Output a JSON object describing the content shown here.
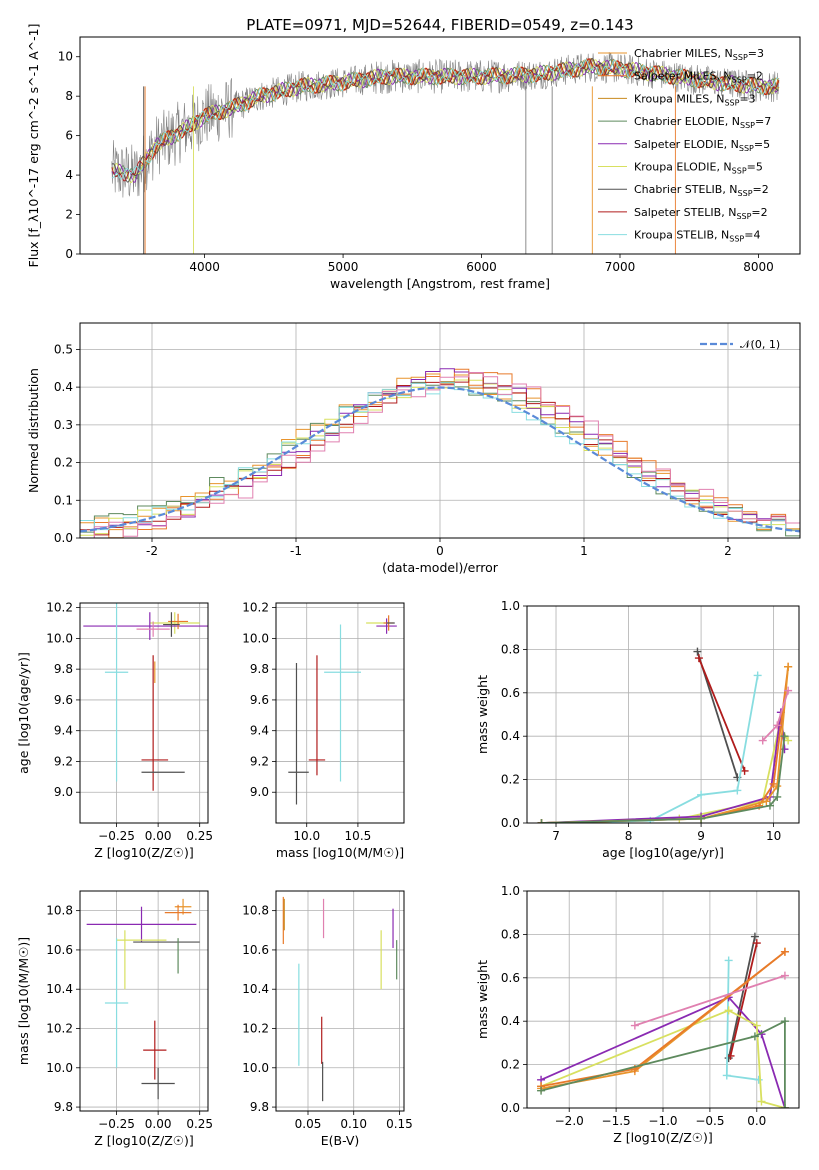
{
  "figure": {
    "title": "PLATE=0971, MJD=52644, FIBERID=0549, z=0.143"
  },
  "colors": {
    "Chabrier MILES": "#e8942c",
    "Salpeter MILES": "#e87a2a",
    "Kroupa MILES": "#c88a1e",
    "Chabrier ELODIE": "#5e8a5e",
    "Salpeter ELODIE": "#8a2ab2",
    "Kroupa ELODIE": "#d8e060",
    "Chabrier STELIB": "#505050",
    "Salpeter STELIB": "#b01c1c",
    "Kroupa STELIB": "#88dde0",
    "data": "#808080",
    "pink": "#e080b0",
    "gaussian": "#5a8ad8"
  },
  "chart_data": [
    {
      "id": "spectrum",
      "type": "line",
      "xlabel": "wavelength [Angstrom, rest frame]",
      "ylabel": "Flux [f_λ10^-17 erg cm^-2 s^-1 A^-1]",
      "xlim": [
        3100,
        8300
      ],
      "ylim": [
        0,
        11
      ],
      "xticks": [
        4000,
        5000,
        6000,
        7000,
        8000
      ],
      "yticks": [
        0,
        2,
        4,
        6,
        8,
        10
      ],
      "grid": false,
      "legend_position": "upper-right",
      "continuum_envelope": [
        [
          3330,
          4.2
        ],
        [
          3500,
          4.0
        ],
        [
          3650,
          5.5
        ],
        [
          3900,
          6.5
        ],
        [
          4000,
          7.0
        ],
        [
          4200,
          7.4
        ],
        [
          4400,
          8.0
        ],
        [
          4700,
          8.5
        ],
        [
          5000,
          8.7
        ],
        [
          5300,
          9.0
        ],
        [
          5600,
          9.0
        ],
        [
          6000,
          9.0
        ],
        [
          6400,
          9.1
        ],
        [
          6800,
          9.5
        ],
        [
          7000,
          9.4
        ],
        [
          7300,
          9.1
        ],
        [
          7700,
          8.7
        ],
        [
          8000,
          8.5
        ],
        [
          8150,
          8.5
        ]
      ],
      "series": [
        {
          "name": "Chabrier MILES",
          "ssp": "3",
          "color_key": "Chabrier MILES"
        },
        {
          "name": "Salpeter MILES",
          "ssp": "2",
          "color_key": "Salpeter MILES"
        },
        {
          "name": "Kroupa MILES",
          "ssp": "3",
          "color_key": "Kroupa MILES"
        },
        {
          "name": "Chabrier ELODIE",
          "ssp": "7",
          "color_key": "Chabrier ELODIE"
        },
        {
          "name": "Salpeter ELODIE",
          "ssp": "5",
          "color_key": "Salpeter ELODIE"
        },
        {
          "name": "Kroupa ELODIE",
          "ssp": "5",
          "color_key": "Kroupa ELODIE"
        },
        {
          "name": "Chabrier STELIB",
          "ssp": "2",
          "color_key": "Chabrier STELIB"
        },
        {
          "name": "Salpeter STELIB",
          "ssp": "2",
          "color_key": "Salpeter STELIB"
        },
        {
          "name": "Kroupa STELIB",
          "ssp": "4",
          "color_key": "Kroupa STELIB"
        }
      ]
    },
    {
      "id": "residuals",
      "type": "line",
      "xlabel": "(data-model)/error",
      "ylabel": "Normed distribution",
      "xlim": [
        -2.5,
        2.5
      ],
      "ylim": [
        0,
        0.57
      ],
      "xticks": [
        -2,
        -1,
        0,
        1,
        2
      ],
      "yticks": [
        0.0,
        0.1,
        0.2,
        0.3,
        0.4,
        0.5
      ],
      "grid": true,
      "legend_position": "upper-right",
      "gaussian_label": "𝒩(0, 1)",
      "bin_width": 0.1,
      "histograms": [
        {
          "color_key": "Chabrier MILES",
          "amp": 0.42,
          "sigma": 1.05,
          "shift": 0.05
        },
        {
          "color_key": "Salpeter MILES",
          "amp": 0.43,
          "sigma": 1.0,
          "shift": 0.15
        },
        {
          "color_key": "Chabrier ELODIE",
          "amp": 0.41,
          "sigma": 1.05,
          "shift": 0.0
        },
        {
          "color_key": "Salpeter ELODIE",
          "amp": 0.43,
          "sigma": 0.98,
          "shift": 0.1
        },
        {
          "color_key": "Kroupa ELODIE",
          "amp": 0.41,
          "sigma": 1.02,
          "shift": 0.05
        },
        {
          "color_key": "Salpeter STELIB",
          "amp": 0.42,
          "sigma": 1.0,
          "shift": 0.12
        },
        {
          "color_key": "Kroupa STELIB",
          "amp": 0.4,
          "sigma": 1.04,
          "shift": 0.02
        },
        {
          "color_key": "pink",
          "amp": 0.42,
          "sigma": 1.0,
          "shift": 0.18
        }
      ]
    },
    {
      "id": "age-vs-Z",
      "type": "scatter",
      "xlabel": "Z [log10(Z/Z☉)]",
      "ylabel": "age [log10(age/yr)]",
      "xlim": [
        -0.47,
        0.3
      ],
      "ylim": [
        8.8,
        10.23
      ],
      "xticks": [
        -0.25,
        0.0,
        0.25
      ],
      "xtick_labels": [
        "−0.25",
        "0.00",
        "0.25"
      ],
      "yticks": [
        9.0,
        9.2,
        9.4,
        9.6,
        9.8,
        10.0,
        10.2
      ],
      "grid": true,
      "points": [
        {
          "x": 0.1,
          "y": 10.1,
          "xerr": 0.15,
          "yerr": 0.07,
          "color_key": "Kroupa ELODIE"
        },
        {
          "x": -0.05,
          "y": 10.08,
          "xerr": 0.4,
          "yerr": 0.09,
          "color_key": "Salpeter ELODIE"
        },
        {
          "x": 0.12,
          "y": 10.11,
          "xerr": 0.06,
          "yerr": 0.05,
          "color_key": "Salpeter MILES"
        },
        {
          "x": 0.08,
          "y": 10.09,
          "xerr": 0.05,
          "yerr": 0.08,
          "color_key": "Chabrier STELIB"
        },
        {
          "x": -0.03,
          "y": 10.06,
          "xerr": 0.1,
          "yerr": 0.05,
          "color_key": "pink"
        },
        {
          "x": -0.25,
          "y": 9.78,
          "xerr": 0.07,
          "yerr": 0.71,
          "color_key": "Kroupa STELIB"
        },
        {
          "x": -0.02,
          "y": 9.78,
          "xerr": 0.0,
          "yerr": 0.07,
          "color_key": "Chabrier MILES"
        },
        {
          "x": -0.03,
          "y": 9.45,
          "xerr": 0.0,
          "yerr": 0.44,
          "color_key": "Salpeter STELIB"
        },
        {
          "x": -0.02,
          "y": 9.21,
          "xerr": 0.08,
          "yerr": 0.0,
          "color_key": "Salpeter STELIB"
        },
        {
          "x": 0.03,
          "y": 9.13,
          "xerr": 0.13,
          "yerr": 0.0,
          "color_key": "Chabrier STELIB"
        }
      ]
    },
    {
      "id": "age-vs-mass",
      "type": "scatter",
      "xlabel": "mass [log10(M/M☉)]",
      "ylabel": "",
      "xlim": [
        9.7,
        10.95
      ],
      "ylim": [
        8.8,
        10.23
      ],
      "xticks": [
        10.0,
        10.5
      ],
      "xtick_labels": [
        "10.0",
        "10.5"
      ],
      "yticks": [
        9.0,
        9.2,
        9.4,
        9.6,
        9.8,
        10.0,
        10.2
      ],
      "grid": true,
      "points": [
        {
          "x": 10.68,
          "y": 10.1,
          "xerr": 0.1,
          "yerr": 0.0,
          "color_key": "Kroupa ELODIE"
        },
        {
          "x": 10.78,
          "y": 10.08,
          "xerr": 0.1,
          "yerr": 0.05,
          "color_key": "Salpeter ELODIE"
        },
        {
          "x": 10.8,
          "y": 10.1,
          "xerr": 0.05,
          "yerr": 0.05,
          "color_key": "Salpeter MILES"
        },
        {
          "x": 10.82,
          "y": 10.1,
          "xerr": 0.04,
          "yerr": 0.0,
          "color_key": "Chabrier STELIB"
        },
        {
          "x": 10.35,
          "y": 9.78,
          "xerr": 0.18,
          "yerr": 0.0,
          "color_key": "Kroupa STELIB"
        },
        {
          "x": 10.33,
          "y": 9.58,
          "xerr": 0.0,
          "yerr": 0.51,
          "color_key": "Kroupa STELIB"
        },
        {
          "x": 9.9,
          "y": 9.38,
          "xerr": 0.0,
          "yerr": 0.46,
          "color_key": "Chabrier STELIB"
        },
        {
          "x": 9.92,
          "y": 9.13,
          "xerr": 0.1,
          "yerr": 0.0,
          "color_key": "Chabrier STELIB"
        },
        {
          "x": 10.1,
          "y": 9.5,
          "xerr": 0.0,
          "yerr": 0.39,
          "color_key": "Salpeter STELIB"
        },
        {
          "x": 10.1,
          "y": 9.21,
          "xerr": 0.08,
          "yerr": 0.0,
          "color_key": "Salpeter STELIB"
        }
      ]
    },
    {
      "id": "massweight-vs-age",
      "type": "line",
      "xlabel": "age [log10(age/yr)]",
      "ylabel": "mass weight",
      "xlim": [
        6.6,
        10.35
      ],
      "ylim": [
        0,
        1
      ],
      "xticks": [
        7,
        8,
        9,
        10
      ],
      "yticks": [
        0.0,
        0.2,
        0.4,
        0.6,
        0.8,
        1.0
      ],
      "grid": true,
      "series": [
        {
          "color_key": "Chabrier STELIB",
          "points": [
            [
              8.95,
              0.79
            ],
            [
              9.5,
              0.21
            ]
          ]
        },
        {
          "color_key": "Salpeter STELIB",
          "points": [
            [
              8.97,
              0.76
            ],
            [
              9.6,
              0.24
            ]
          ]
        },
        {
          "color_key": "Kroupa STELIB",
          "points": [
            [
              6.8,
              0.0
            ],
            [
              8.3,
              0.01
            ],
            [
              9.0,
              0.13
            ],
            [
              9.5,
              0.15
            ],
            [
              9.78,
              0.68
            ]
          ]
        },
        {
          "color_key": "Kroupa ELODIE",
          "points": [
            [
              6.8,
              0.0
            ],
            [
              8.7,
              0.02
            ],
            [
              9.85,
              0.1
            ],
            [
              10.08,
              0.45
            ],
            [
              10.2,
              0.38
            ]
          ]
        },
        {
          "color_key": "Salpeter ELODIE",
          "points": [
            [
              6.8,
              0.0
            ],
            [
              9.0,
              0.03
            ],
            [
              9.95,
              0.12
            ],
            [
              10.1,
              0.51
            ],
            [
              10.15,
              0.34
            ]
          ]
        },
        {
          "color_key": "Salpeter MILES",
          "points": [
            [
              6.8,
              0.0
            ],
            [
              9.0,
              0.02
            ],
            [
              9.8,
              0.08
            ],
            [
              10.0,
              0.18
            ],
            [
              10.2,
              0.72
            ]
          ]
        },
        {
          "color_key": "Chabrier MILES",
          "points": [
            [
              6.8,
              0.0
            ],
            [
              9.0,
              0.02
            ],
            [
              9.9,
              0.1
            ],
            [
              10.05,
              0.17
            ],
            [
              10.2,
              0.72
            ]
          ]
        },
        {
          "color_key": "Chabrier ELODIE",
          "points": [
            [
              6.8,
              0.0
            ],
            [
              9.0,
              0.02
            ],
            [
              9.95,
              0.08
            ],
            [
              10.05,
              0.12
            ],
            [
              10.15,
              0.4
            ]
          ]
        },
        {
          "color_key": "pink",
          "points": [
            [
              9.85,
              0.38
            ],
            [
              10.05,
              0.45
            ],
            [
              10.2,
              0.61
            ]
          ]
        }
      ]
    },
    {
      "id": "mass-vs-Z",
      "type": "scatter",
      "xlabel": "Z [log10(Z/Z☉)]",
      "ylabel": "mass [log10(M/M☉)]",
      "xlim": [
        -0.47,
        0.3
      ],
      "ylim": [
        9.78,
        10.9
      ],
      "xticks": [
        -0.25,
        0.0,
        0.25
      ],
      "xtick_labels": [
        "−0.25",
        "0.00",
        "0.25"
      ],
      "yticks": [
        9.8,
        10.0,
        10.2,
        10.4,
        10.6,
        10.8
      ],
      "grid": true,
      "points": [
        {
          "x": 0.15,
          "y": 10.82,
          "xerr": 0.05,
          "yerr": 0.04,
          "color_key": "Chabrier MILES"
        },
        {
          "x": 0.12,
          "y": 10.79,
          "xerr": 0.08,
          "yerr": 0.04,
          "color_key": "Salpeter MILES"
        },
        {
          "x": -0.1,
          "y": 10.73,
          "xerr": 0.33,
          "yerr": 0.09,
          "color_key": "Salpeter ELODIE"
        },
        {
          "x": -0.1,
          "y": 10.65,
          "xerr": 0.15,
          "yerr": 0.0,
          "color_key": "Kroupa ELODIE"
        },
        {
          "x": 0.05,
          "y": 10.64,
          "xerr": 0.2,
          "yerr": 0.0,
          "color_key": "Chabrier STELIB"
        },
        {
          "x": 0.12,
          "y": 10.57,
          "xerr": 0.0,
          "yerr": 0.09,
          "color_key": "Chabrier ELODIE"
        },
        {
          "x": -0.2,
          "y": 10.55,
          "xerr": 0.0,
          "yerr": 0.15,
          "color_key": "Kroupa ELODIE"
        },
        {
          "x": -0.25,
          "y": 10.33,
          "xerr": 0.07,
          "yerr": 0.33,
          "color_key": "Kroupa STELIB"
        },
        {
          "x": -0.02,
          "y": 10.09,
          "xerr": 0.07,
          "yerr": 0.15,
          "color_key": "Salpeter STELIB"
        },
        {
          "x": 0.0,
          "y": 9.92,
          "xerr": 0.1,
          "yerr": 0.08,
          "color_key": "Chabrier STELIB"
        }
      ]
    },
    {
      "id": "mass-vs-EBV",
      "type": "scatter",
      "xlabel": "E(B-V)",
      "ylabel": "",
      "xlim": [
        0.015,
        0.155
      ],
      "ylim": [
        9.78,
        10.9
      ],
      "xticks": [
        0.05,
        0.1,
        0.15
      ],
      "xtick_labels": [
        "0.05",
        "0.10",
        "0.15"
      ],
      "yticks": [
        9.8,
        10.0,
        10.2,
        10.4,
        10.6,
        10.8
      ],
      "grid": true,
      "points": [
        {
          "x": 0.023,
          "y": 10.75,
          "xerr": 0.0,
          "yerr": 0.12,
          "color_key": "Salpeter MILES"
        },
        {
          "x": 0.024,
          "y": 10.78,
          "xerr": 0.0,
          "yerr": 0.08,
          "color_key": "Kroupa MILES"
        },
        {
          "x": 0.04,
          "y": 10.27,
          "xerr": 0.0,
          "yerr": 0.26,
          "color_key": "Kroupa STELIB"
        },
        {
          "x": 0.065,
          "y": 10.14,
          "xerr": 0.0,
          "yerr": 0.12,
          "color_key": "Salpeter STELIB"
        },
        {
          "x": 0.066,
          "y": 9.93,
          "xerr": 0.0,
          "yerr": 0.1,
          "color_key": "Chabrier STELIB"
        },
        {
          "x": 0.067,
          "y": 10.76,
          "xerr": 0.0,
          "yerr": 0.1,
          "color_key": "pink"
        },
        {
          "x": 0.13,
          "y": 10.55,
          "xerr": 0.0,
          "yerr": 0.15,
          "color_key": "Kroupa ELODIE"
        },
        {
          "x": 0.143,
          "y": 10.71,
          "xerr": 0.0,
          "yerr": 0.1,
          "color_key": "Salpeter ELODIE"
        },
        {
          "x": 0.147,
          "y": 10.55,
          "xerr": 0.0,
          "yerr": 0.1,
          "color_key": "Chabrier ELODIE"
        }
      ]
    },
    {
      "id": "massweight-vs-Z",
      "type": "line",
      "xlabel": "Z [log10(Z/Z☉)]",
      "ylabel": "mass weight",
      "xlim": [
        -2.45,
        0.45
      ],
      "ylim": [
        0,
        1
      ],
      "xticks": [
        -2.0,
        -1.5,
        -1.0,
        -0.5,
        0.0
      ],
      "xtick_labels": [
        "−2.0",
        "−1.5",
        "−1.0",
        "−0.5",
        "0.0"
      ],
      "yticks": [
        0.0,
        0.2,
        0.4,
        0.6,
        0.8,
        1.0
      ],
      "grid": true,
      "series": [
        {
          "color_key": "Chabrier STELIB",
          "points": [
            [
              -0.3,
              0.23
            ],
            [
              -0.02,
              0.79
            ]
          ]
        },
        {
          "color_key": "Salpeter STELIB",
          "points": [
            [
              -0.28,
              0.24
            ],
            [
              0.0,
              0.76
            ]
          ]
        },
        {
          "color_key": "Kroupa STELIB",
          "points": [
            [
              -0.3,
              0.68
            ],
            [
              -0.32,
              0.15
            ],
            [
              0.02,
              0.13
            ]
          ]
        },
        {
          "color_key": "Salpeter ELODIE",
          "points": [
            [
              -2.3,
              0.13
            ],
            [
              -0.3,
              0.51
            ],
            [
              0.05,
              0.34
            ],
            [
              0.3,
              0.0
            ]
          ]
        },
        {
          "color_key": "Kroupa ELODIE",
          "points": [
            [
              -2.3,
              0.1
            ],
            [
              -0.3,
              0.45
            ],
            [
              0.0,
              0.38
            ],
            [
              0.05,
              0.03
            ],
            [
              0.3,
              0.0
            ]
          ]
        },
        {
          "color_key": "Chabrier MILES",
          "points": [
            [
              -2.3,
              0.09
            ],
            [
              -1.3,
              0.17
            ],
            [
              0.3,
              0.72
            ]
          ]
        },
        {
          "color_key": "Salpeter MILES",
          "points": [
            [
              -2.3,
              0.1
            ],
            [
              -1.3,
              0.18
            ],
            [
              0.3,
              0.72
            ]
          ]
        },
        {
          "color_key": "Chabrier ELODIE",
          "points": [
            [
              -2.3,
              0.08
            ],
            [
              -0.02,
              0.33
            ],
            [
              0.3,
              0.4
            ],
            [
              0.3,
              0.0
            ]
          ]
        },
        {
          "color_key": "pink",
          "points": [
            [
              -1.3,
              0.38
            ],
            [
              0.3,
              0.61
            ]
          ]
        }
      ]
    }
  ]
}
